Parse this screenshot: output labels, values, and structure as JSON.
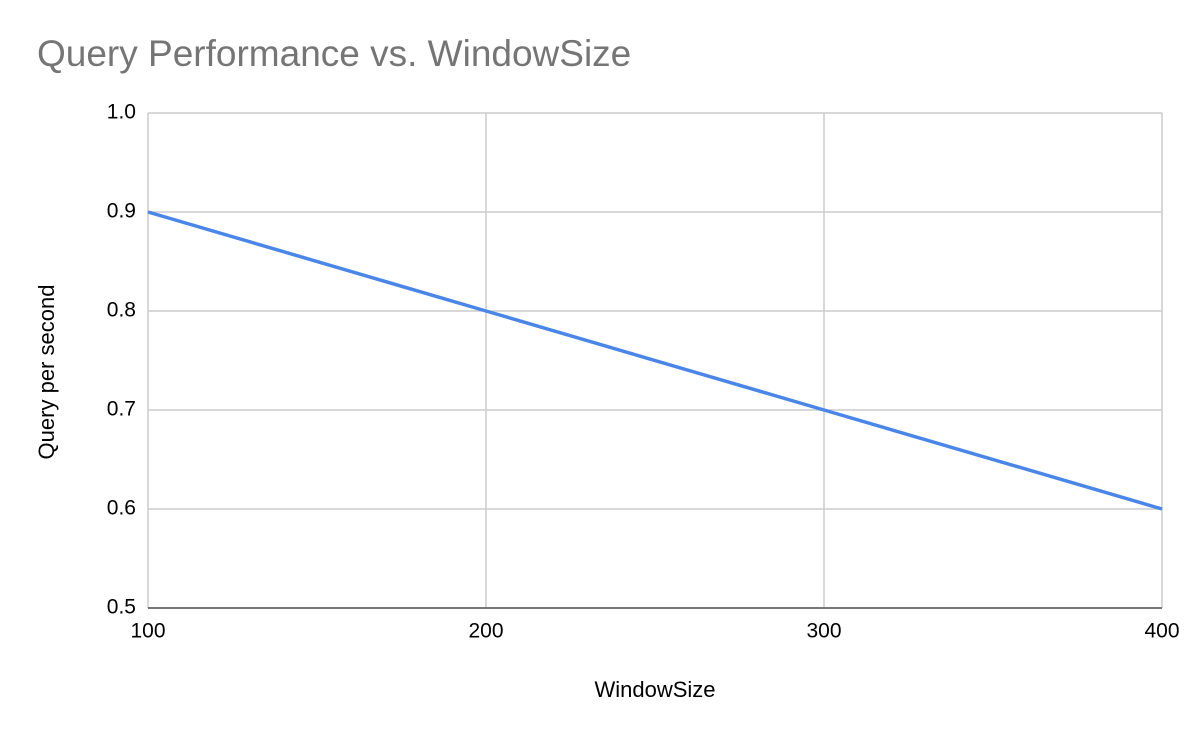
{
  "chart_data": {
    "type": "line",
    "title": "Query Performance vs. WindowSize",
    "x_label": "WindowSize",
    "y_label": "Query per second",
    "x": [
      100,
      200,
      300,
      400
    ],
    "values": [
      0.9,
      0.8,
      0.7,
      0.6
    ],
    "color": "#4a86e8",
    "xlim": [
      100,
      400
    ],
    "xticks": [
      100,
      200,
      300,
      400
    ],
    "ylim": [
      0.5,
      1.0
    ],
    "yticks": [
      0.5,
      0.6,
      0.7,
      0.8,
      0.9,
      {
        "value": 1.0,
        "label": "1.0"
      }
    ],
    "grid": true
  }
}
